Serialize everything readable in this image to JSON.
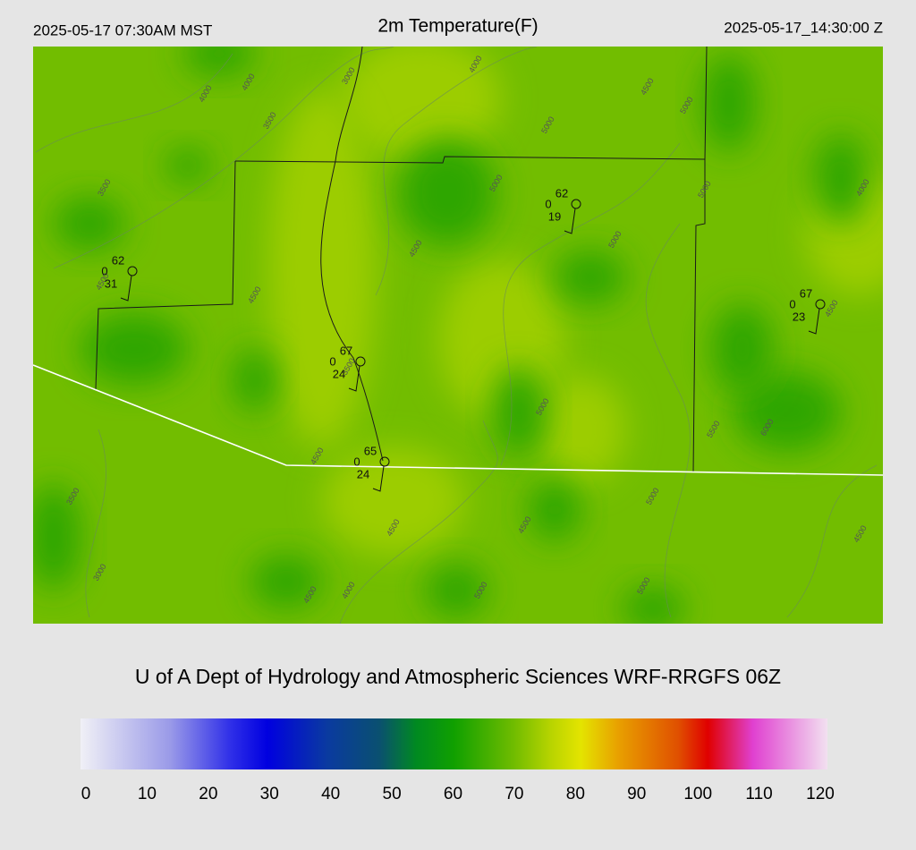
{
  "header": {
    "left": "2025-05-17 07:30AM MST",
    "title": "2m Temperature(F)",
    "right": "2025-05-17_14:30:00 Z"
  },
  "map": {
    "contour_labels": [
      "4000",
      "4000",
      "3000",
      "4000",
      "3500",
      "4500",
      "5000",
      "5000",
      "3500",
      "5000",
      "5000",
      "4000",
      "4500",
      "5000",
      "4500",
      "4500",
      "4500",
      "3500",
      "5000",
      "5500",
      "6000",
      "4500",
      "5000",
      "4500",
      "4500",
      "3500",
      "3000",
      "4500",
      "4000",
      "5000",
      "5000",
      "4500"
    ],
    "stations": [
      {
        "temperature": "62",
        "left": "0",
        "dewpoint": "31"
      },
      {
        "temperature": "62",
        "left": "0",
        "dewpoint": "19"
      },
      {
        "temperature": "67",
        "left": "0",
        "dewpoint": "23"
      },
      {
        "temperature": "67",
        "left": "0",
        "dewpoint": "24"
      },
      {
        "temperature": "65",
        "left": "0",
        "dewpoint": "24"
      }
    ]
  },
  "footer": {
    "credit": "U of A Dept of Hydrology and Atmospheric Sciences WRF-RRGFS 06Z"
  },
  "colorbar": {
    "lim": [
      0,
      120
    ],
    "ticks": [
      0,
      10,
      20,
      30,
      40,
      50,
      60,
      70,
      80,
      90,
      100,
      110,
      120
    ]
  }
}
